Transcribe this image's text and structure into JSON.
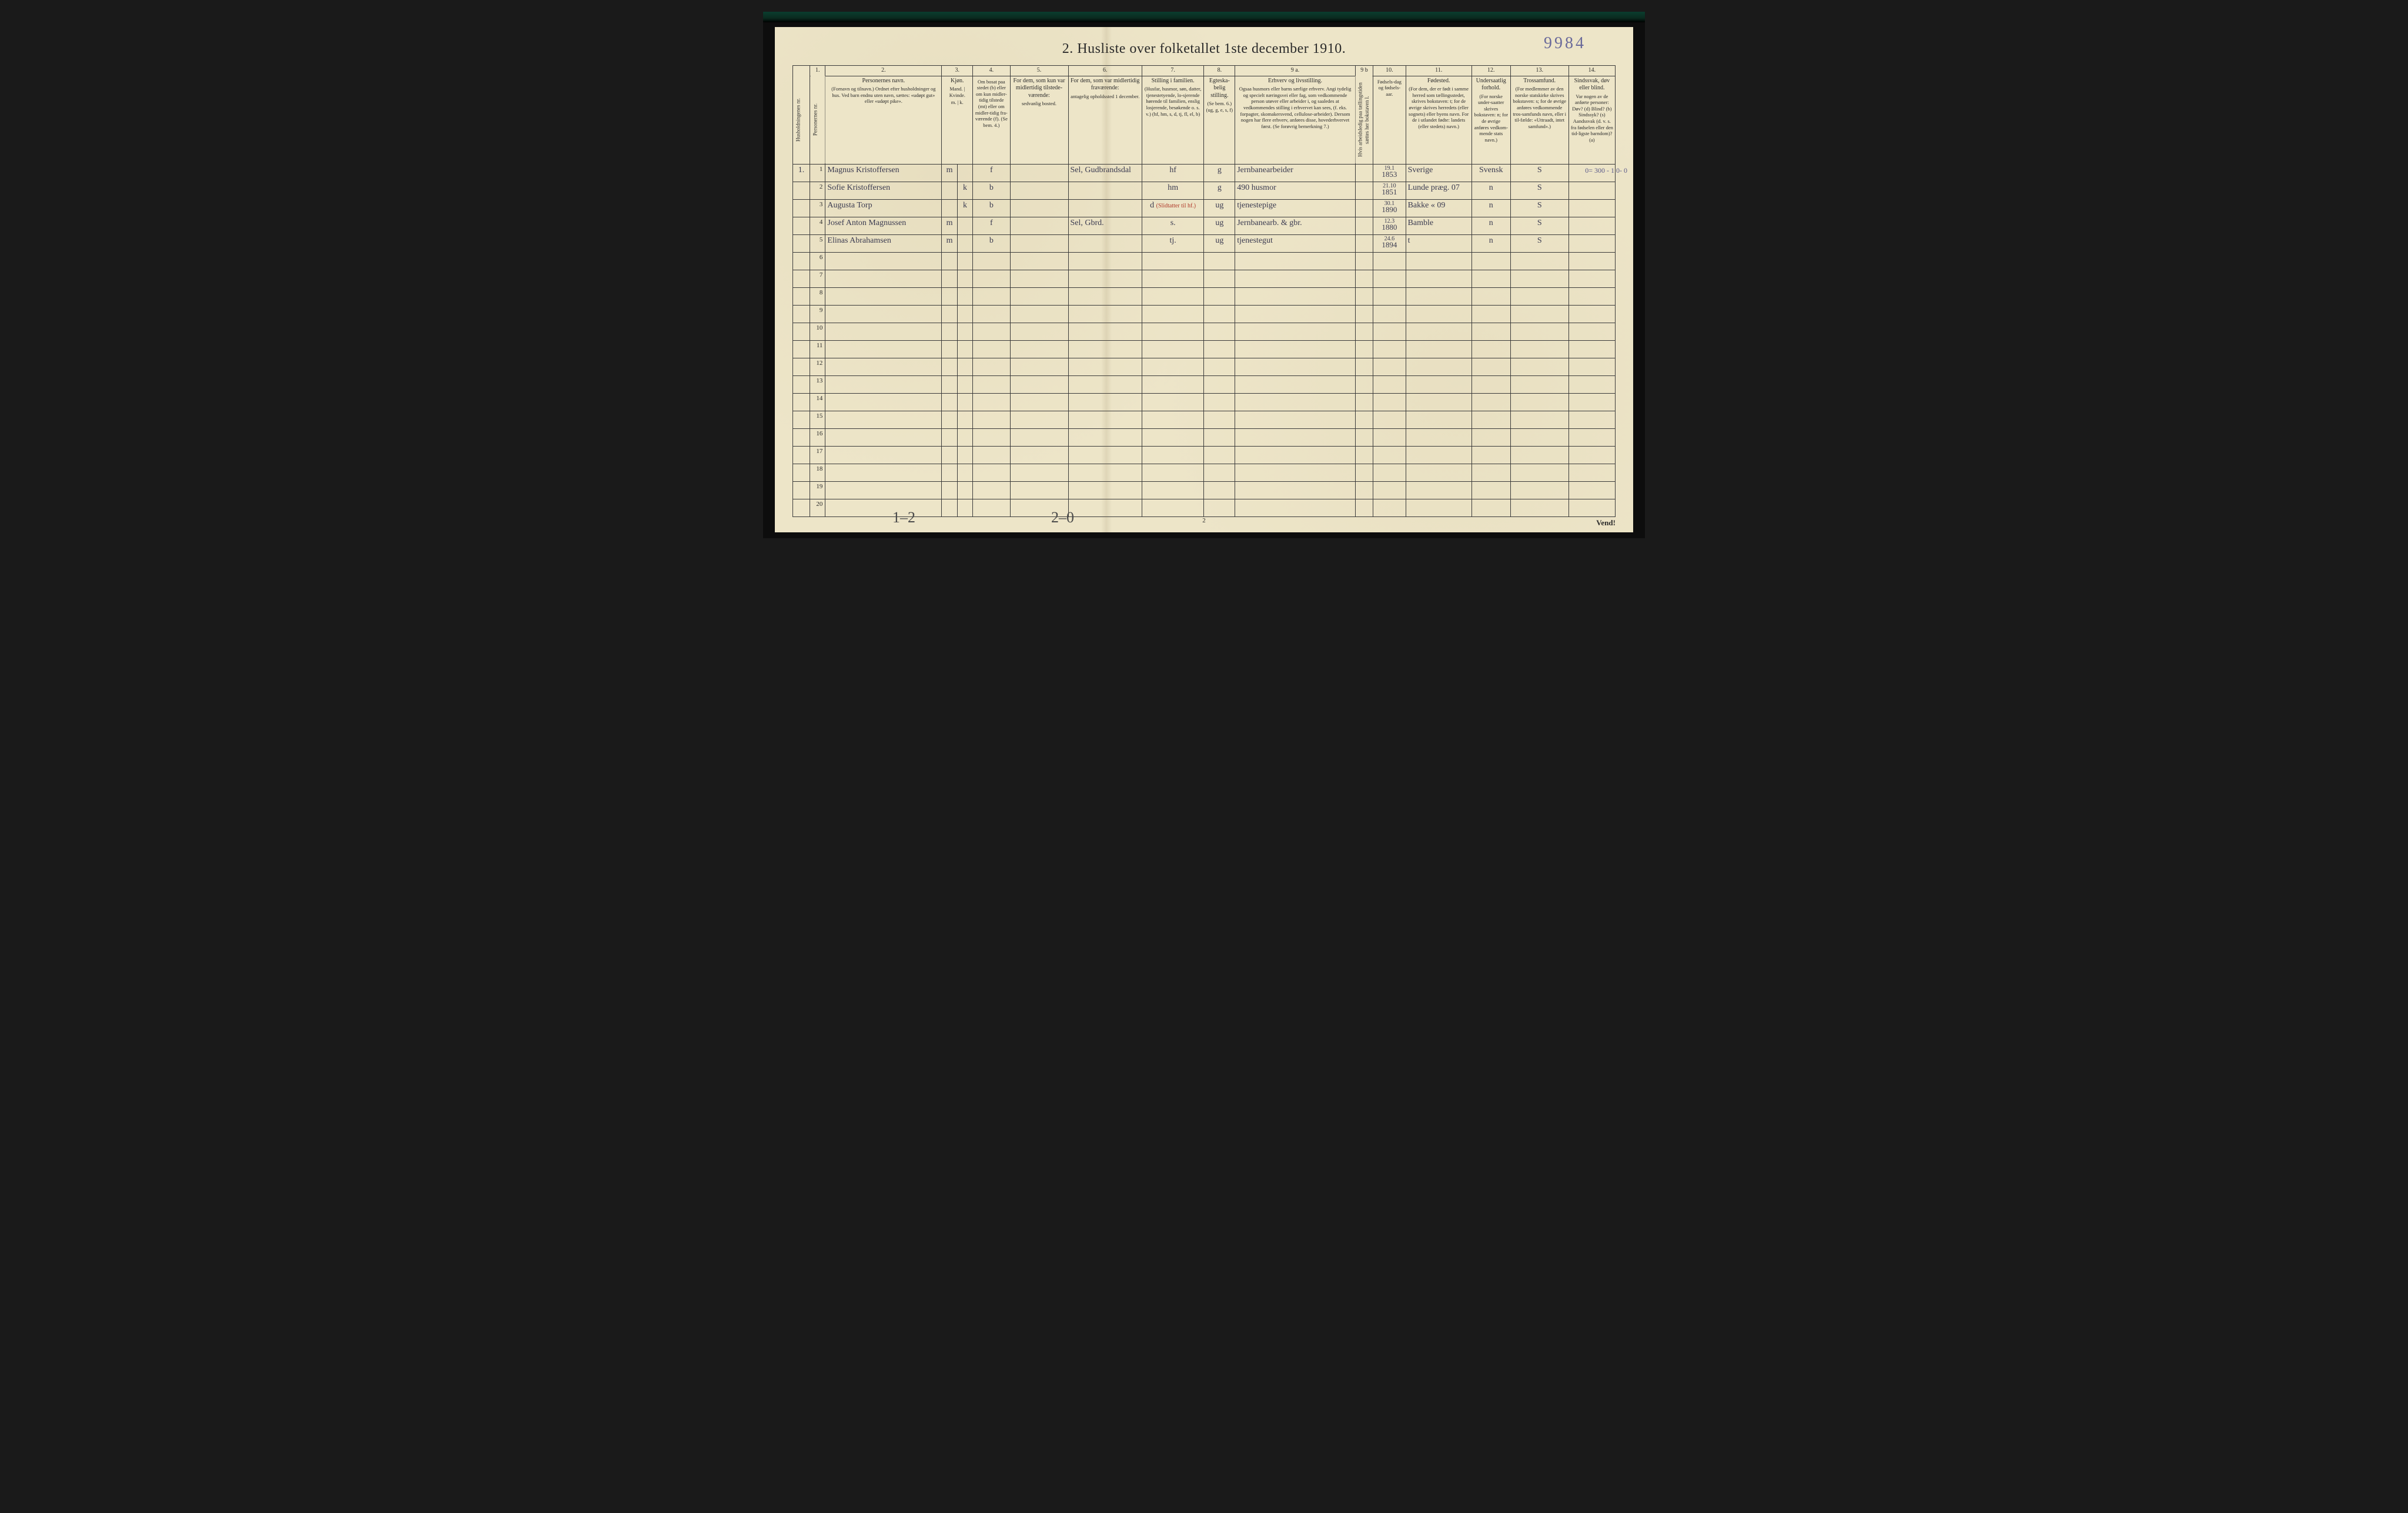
{
  "topRef": "9984",
  "title": "2.  Husliste over folketallet 1ste december 1910.",
  "columnNumbers": [
    "",
    "1.",
    "2.",
    "3.",
    "4.",
    "5.",
    "6.",
    "7.",
    "8.",
    "9 a.",
    "9 b",
    "10.",
    "11.",
    "12.",
    "13.",
    "14."
  ],
  "headers": {
    "c0": "Husholdningenes nr.",
    "c1": "Personernes nr.",
    "c2": "Personernes navn.",
    "c2sub": "(Fornavn og tilnavn.) Ordnet efter husholdninger og hus. Ved barn endnu uten navn, sættes: «udøpt gut» eller «udøpt pike».",
    "c3": "Kjøn.",
    "c3sub": "Mand. | Kvinde.",
    "c3mk": "m. | k.",
    "c4": "Om bosat paa stedet (b) eller om kun midler-tidig tilstede (mt) eller om midler-tidig fra-værende (f). (Se bem. 4.)",
    "c5": "For dem, som kun var midlertidig tilstede-værende:",
    "c5sub": "sedvanlig bosted.",
    "c6": "For dem, som var midlertidig fraværende:",
    "c6sub": "antagelig opholdssted 1 december.",
    "c7": "Stilling i familien.",
    "c7sub": "(Husfar, husmor, søn, datter, tjenestetyende, lo-sjerende hørende til familien, enslig losjerende, besøkende o. s. v.) (hf, hm, s, d, tj, fl, el, b)",
    "c8": "Egteska-belig stilling.",
    "c8sub": "(Se bem. 6.) (ug, g, e, s, f)",
    "c9a": "Erhverv og livsstilling.",
    "c9asub": "Ogsaa husmors eller barns særlige erhverv. Angi tydelig og specielt næringsvei eller fag, som vedkommende person utøver eller arbeider i, og saaledes at vedkommendes stilling i erhvervet kan sees, (f. eks. forpagter, skomakersvend, cellulose-arbeider). Dersom nogen har flere erhverv, anføres disse, hovederhvervet først. (Se forøvrig bemerkning 7.)",
    "c9b": "Hvis arbeidsledig paa tællingstiden sættes her bokstaven l.",
    "c10": "Fødsels-dag og fødsels-aar.",
    "c11": "Fødested.",
    "c11sub": "(For dem, der er født i samme herred som tællingsstedet, skrives bokstaven: t; for de øvrige skrives herredets (eller sognets) eller byens navn. For de i utlandet fødte: landets (eller stedets) navn.)",
    "c12": "Undersaatlig forhold.",
    "c12sub": "(For norske under-saatter skrives bokstaven: n; for de øvrige anføres vedkom-mende stats navn.)",
    "c13": "Trossamfund.",
    "c13sub": "(For medlemmer av den norske statskirke skrives bokstaven: s; for de øvrige anføres vedkommende tros-samfunds navn, eller i til-fælde: «Uttraadt, intet samfund».)",
    "c14": "Sindssvak, døv eller blind.",
    "c14sub": "Var nogen av de anførte personer: Døv? (d) Blind? (b) Sindssyk? (s) Aandssvak (d. v. s. fra fødselen eller den tid-ligste barndom)? (a)"
  },
  "rows": [
    {
      "hh": "1.",
      "pn": "1",
      "name": "Magnus Kristoffersen",
      "sexM": "m",
      "sexK": "",
      "res": "f",
      "c5": "",
      "c6": "Sel, Gudbrandsdal",
      "fam": "hf",
      "mar": "g",
      "occ": "Jernbanearbeider",
      "c9b": "",
      "birthD": "19.1",
      "birthY": "1853",
      "place": "Sverige",
      "nat": "Svensk",
      "rel": "S",
      "c14": ""
    },
    {
      "hh": "",
      "pn": "2",
      "name": "Sofie Kristoffersen",
      "sexM": "",
      "sexK": "k",
      "res": "b",
      "c5": "",
      "c6": "",
      "fam": "hm",
      "mar": "g",
      "occ": "490 husmor",
      "c9b": "",
      "birthD": "21.10",
      "birthY": "1851",
      "place": "Lunde præg. 07",
      "nat": "n",
      "rel": "S",
      "c14": ""
    },
    {
      "hh": "",
      "pn": "3",
      "name": "Augusta Torp",
      "sexM": "",
      "sexK": "k",
      "res": "b",
      "c5": "",
      "c6": "",
      "fam": "d (Slidtatter til hf.)",
      "famRed": true,
      "mar": "ug",
      "occ": "tjenestepige",
      "c9b": "",
      "birthD": "30.1",
      "birthY": "1890",
      "place": "Bakke « 09",
      "nat": "n",
      "rel": "S",
      "c14": ""
    },
    {
      "hh": "",
      "pn": "4",
      "name": "Josef Anton Magnussen",
      "sexM": "m",
      "sexK": "",
      "res": "f",
      "c5": "",
      "c6": "Sel, Gbrd.",
      "fam": "s.",
      "mar": "ug",
      "occ": "Jernbanearb. & gbr.",
      "c9b": "",
      "birthD": "12.3",
      "birthY": "1880",
      "place": "Bamble",
      "nat": "n",
      "rel": "S",
      "c14": ""
    },
    {
      "hh": "",
      "pn": "5",
      "name": "Elinas Abrahamsen",
      "sexM": "m",
      "sexK": "",
      "res": "b",
      "c5": "",
      "c6": "",
      "fam": "tj.",
      "mar": "ug",
      "occ": "tjenestegut",
      "c9b": "",
      "birthD": "24.6",
      "birthY": "1894",
      "place": "t",
      "nat": "n",
      "rel": "S",
      "c14": ""
    }
  ],
  "emptyRowsFrom": 6,
  "emptyRowsTo": 20,
  "bottom": {
    "noteLeft": "1–2",
    "noteMid": "2–0",
    "pageNum": "2",
    "vend": "Vend!"
  },
  "marginScribble": "0= 300 - 1\n0-   0",
  "colWidths": [
    "2.2%",
    "2.0%",
    "15%",
    "2.0%",
    "2.0%",
    "4.8%",
    "7.5%",
    "9.5%",
    "8%",
    "4%",
    "15.5%",
    "2.3%",
    "4.2%",
    "8.5%",
    "5%",
    "7.5%",
    "6%"
  ]
}
